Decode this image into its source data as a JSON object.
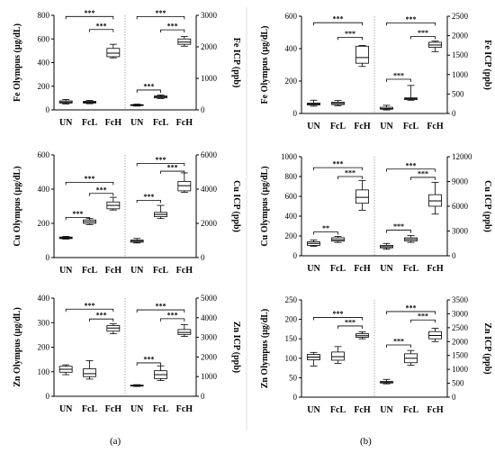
{
  "panel_labels": [
    "(a)",
    "(b)"
  ],
  "chart_data": [
    {
      "type": "box",
      "panel": "(a)",
      "row": 1,
      "categories": [
        "UN",
        "FcL",
        "FcH"
      ],
      "left_axis": {
        "label": "Fe Olympus (µg/dL)",
        "ylim": [
          0,
          800
        ],
        "ticks": [
          0,
          200,
          400,
          600,
          800
        ]
      },
      "right_axis": {
        "label": "Fe ICP (ppb)",
        "ylim": [
          0,
          3000
        ],
        "ticks": [
          0,
          1000,
          2000,
          3000
        ]
      },
      "series": [
        {
          "axis": "left",
          "boxes": [
            {
              "min": 50,
              "q1": 58,
              "median": 66,
              "q3": 76,
              "max": 88
            },
            {
              "min": 52,
              "q1": 58,
              "median": 65,
              "q3": 72,
              "max": 80
            },
            {
              "min": 440,
              "q1": 450,
              "median": 480,
              "q3": 520,
              "max": 555
            }
          ]
        },
        {
          "axis": "right",
          "boxes": [
            {
              "min": 120,
              "q1": 140,
              "median": 150,
              "q3": 165,
              "max": 180
            },
            {
              "min": 360,
              "q1": 380,
              "median": 410,
              "q3": 440,
              "max": 470
            },
            {
              "min": 2020,
              "q1": 2080,
              "median": 2150,
              "q3": 2250,
              "max": 2330
            }
          ]
        }
      ],
      "brackets": [
        {
          "axis": "left",
          "from": 0,
          "to": 2,
          "label": "***",
          "y": 790
        },
        {
          "axis": "left",
          "from": 1,
          "to": 2,
          "label": "***",
          "y": 680
        },
        {
          "axis": "right",
          "from": 0,
          "to": 2,
          "label": "***",
          "y": 2960
        },
        {
          "axis": "right",
          "from": 1,
          "to": 2,
          "label": "***",
          "y": 2540
        },
        {
          "axis": "right",
          "from": 0,
          "to": 1,
          "label": "***",
          "y": 630
        }
      ]
    },
    {
      "type": "box",
      "panel": "(b)",
      "row": 1,
      "categories": [
        "UN",
        "FcL",
        "FcH"
      ],
      "left_axis": {
        "label": "Fe Olympus (µg/dL)",
        "ylim": [
          0,
          600
        ],
        "ticks": [
          0,
          200,
          400,
          600
        ]
      },
      "right_axis": {
        "label": "Fe ICP (ppb)",
        "ylim": [
          0,
          2500
        ],
        "ticks": [
          0,
          500,
          1000,
          1500,
          2000,
          2500
        ]
      },
      "series": [
        {
          "axis": "left",
          "boxes": [
            {
              "min": 45,
              "q1": 52,
              "median": 58,
              "q3": 64,
              "max": 82
            },
            {
              "min": 48,
              "q1": 55,
              "median": 62,
              "q3": 70,
              "max": 80
            },
            {
              "min": 290,
              "q1": 310,
              "median": 345,
              "q3": 415,
              "max": 420
            }
          ]
        },
        {
          "axis": "right",
          "boxes": [
            {
              "min": 90,
              "q1": 110,
              "median": 125,
              "q3": 160,
              "max": 210
            },
            {
              "min": 340,
              "q1": 360,
              "median": 380,
              "q3": 400,
              "max": 720
            },
            {
              "min": 1590,
              "q1": 1700,
              "median": 1760,
              "q3": 1830,
              "max": 1860
            }
          ]
        }
      ],
      "brackets": [
        {
          "axis": "left",
          "from": 0,
          "to": 2,
          "label": "***",
          "y": 560
        },
        {
          "axis": "left",
          "from": 1,
          "to": 2,
          "label": "***",
          "y": 470
        },
        {
          "axis": "right",
          "from": 0,
          "to": 2,
          "label": "***",
          "y": 2330
        },
        {
          "axis": "right",
          "from": 1,
          "to": 2,
          "label": "***",
          "y": 1980
        },
        {
          "axis": "right",
          "from": 0,
          "to": 1,
          "label": "***",
          "y": 880
        }
      ]
    },
    {
      "type": "box",
      "panel": "(a)",
      "row": 2,
      "categories": [
        "UN",
        "FcL",
        "FcH"
      ],
      "left_axis": {
        "label": "Cu Olympus (µg/dL)",
        "ylim": [
          0,
          600
        ],
        "ticks": [
          0,
          200,
          400,
          600
        ]
      },
      "right_axis": {
        "label": "Cu ICP (ppb)",
        "ylim": [
          0,
          6000
        ],
        "ticks": [
          0,
          2000,
          4000,
          6000
        ]
      },
      "series": [
        {
          "axis": "left",
          "boxes": [
            {
              "min": 108,
              "q1": 111,
              "median": 115,
              "q3": 120,
              "max": 124
            },
            {
              "min": 193,
              "q1": 200,
              "median": 210,
              "q3": 220,
              "max": 228
            },
            {
              "min": 278,
              "q1": 285,
              "median": 305,
              "q3": 325,
              "max": 352
            }
          ]
        },
        {
          "axis": "right",
          "boxes": [
            {
              "min": 850,
              "q1": 900,
              "median": 960,
              "q3": 1020,
              "max": 1120
            },
            {
              "min": 2280,
              "q1": 2390,
              "median": 2520,
              "q3": 2640,
              "max": 3050
            },
            {
              "min": 3820,
              "q1": 3900,
              "median": 4200,
              "q3": 4450,
              "max": 4950
            }
          ]
        }
      ],
      "brackets": [
        {
          "axis": "left",
          "from": 0,
          "to": 2,
          "label": "***",
          "y": 440
        },
        {
          "axis": "left",
          "from": 1,
          "to": 2,
          "label": "***",
          "y": 375
        },
        {
          "axis": "left",
          "from": 0,
          "to": 1,
          "label": "***",
          "y": 235
        },
        {
          "axis": "right",
          "from": 0,
          "to": 2,
          "label": "***",
          "y": 5500
        },
        {
          "axis": "right",
          "from": 1,
          "to": 2,
          "label": "***",
          "y": 5050
        },
        {
          "axis": "right",
          "from": 0,
          "to": 1,
          "label": "***",
          "y": 3350
        }
      ]
    },
    {
      "type": "box",
      "panel": "(b)",
      "row": 2,
      "categories": [
        "UN",
        "FcL",
        "FcH"
      ],
      "left_axis": {
        "label": "Cu Olympus (µg/dL)",
        "ylim": [
          0,
          1000
        ],
        "ticks": [
          0,
          200,
          400,
          600,
          800,
          1000
        ]
      },
      "right_axis": {
        "label": "Cu ICP (ppb)",
        "ylim": [
          0,
          12000
        ],
        "ticks": [
          0,
          3000,
          6000,
          9000,
          12000
        ]
      },
      "series": [
        {
          "axis": "left",
          "boxes": [
            {
              "min": 95,
              "q1": 105,
              "median": 125,
              "q3": 140,
              "max": 160
            },
            {
              "min": 135,
              "q1": 148,
              "median": 162,
              "q3": 182,
              "max": 195
            },
            {
              "min": 460,
              "q1": 530,
              "median": 590,
              "q3": 665,
              "max": 760
            }
          ]
        },
        {
          "axis": "right",
          "boxes": [
            {
              "min": 780,
              "q1": 960,
              "median": 1100,
              "q3": 1260,
              "max": 1500
            },
            {
              "min": 1620,
              "q1": 1800,
              "median": 1990,
              "q3": 2180,
              "max": 2450
            },
            {
              "min": 5050,
              "q1": 6000,
              "median": 6650,
              "q3": 7400,
              "max": 8900
            }
          ]
        }
      ],
      "brackets": [
        {
          "axis": "left",
          "from": 0,
          "to": 2,
          "label": "***",
          "y": 890
        },
        {
          "axis": "left",
          "from": 1,
          "to": 2,
          "label": "***",
          "y": 800
        },
        {
          "axis": "left",
          "from": 0,
          "to": 1,
          "label": "**",
          "y": 240
        },
        {
          "axis": "right",
          "from": 0,
          "to": 2,
          "label": "***",
          "y": 10500
        },
        {
          "axis": "right",
          "from": 1,
          "to": 2,
          "label": "***",
          "y": 9500
        },
        {
          "axis": "right",
          "from": 0,
          "to": 1,
          "label": "***",
          "y": 3100
        }
      ]
    },
    {
      "type": "box",
      "panel": "(a)",
      "row": 3,
      "categories": [
        "UN",
        "FcL",
        "FcH"
      ],
      "left_axis": {
        "label": "Zn Olympus (µg/dL)",
        "ylim": [
          0,
          400
        ],
        "ticks": [
          0,
          100,
          200,
          300,
          400
        ]
      },
      "right_axis": {
        "label": "Zn ICP (ppb)",
        "ylim": [
          0,
          5000
        ],
        "ticks": [
          0,
          1000,
          2000,
          3000,
          4000,
          5000
        ]
      },
      "series": [
        {
          "axis": "left",
          "boxes": [
            {
              "min": 88,
              "q1": 98,
              "median": 110,
              "q3": 122,
              "max": 128
            },
            {
              "min": 70,
              "q1": 80,
              "median": 92,
              "q3": 112,
              "max": 145
            },
            {
              "min": 255,
              "q1": 265,
              "median": 278,
              "q3": 288,
              "max": 295
            }
          ]
        },
        {
          "axis": "right",
          "boxes": [
            {
              "min": 500,
              "q1": 530,
              "median": 545,
              "q3": 565,
              "max": 590
            },
            {
              "min": 800,
              "q1": 900,
              "median": 1100,
              "q3": 1300,
              "max": 1550
            },
            {
              "min": 3050,
              "q1": 3150,
              "median": 3250,
              "q3": 3400,
              "max": 3650
            }
          ]
        }
      ],
      "brackets": [
        {
          "axis": "left",
          "from": 0,
          "to": 2,
          "label": "***",
          "y": 355
        },
        {
          "axis": "left",
          "from": 1,
          "to": 2,
          "label": "***",
          "y": 315
        },
        {
          "axis": "right",
          "from": 0,
          "to": 2,
          "label": "***",
          "y": 4400
        },
        {
          "axis": "right",
          "from": 1,
          "to": 2,
          "label": "***",
          "y": 3950
        },
        {
          "axis": "right",
          "from": 0,
          "to": 1,
          "label": "***",
          "y": 1700
        }
      ]
    },
    {
      "type": "box",
      "panel": "(b)",
      "row": 3,
      "categories": [
        "UN",
        "FcL",
        "FcH"
      ],
      "left_axis": {
        "label": "Zn Olympus (µg/dL)",
        "ylim": [
          0,
          250
        ],
        "ticks": [
          0,
          50,
          100,
          150,
          200,
          250
        ]
      },
      "right_axis": {
        "label": "Zn ICP (ppb)",
        "ylim": [
          0,
          3500
        ],
        "ticks": [
          0,
          500,
          1000,
          1500,
          2000,
          2500,
          3000,
          3500
        ]
      },
      "series": [
        {
          "axis": "left",
          "boxes": [
            {
              "min": 80,
              "q1": 96,
              "median": 103,
              "q3": 110,
              "max": 115
            },
            {
              "min": 87,
              "q1": 95,
              "median": 104,
              "q3": 116,
              "max": 130
            },
            {
              "min": 150,
              "q1": 154,
              "median": 158,
              "q3": 163,
              "max": 168
            }
          ]
        },
        {
          "axis": "right",
          "boxes": [
            {
              "min": 480,
              "q1": 510,
              "median": 530,
              "q3": 565,
              "max": 640
            },
            {
              "min": 1150,
              "q1": 1240,
              "median": 1400,
              "q3": 1560,
              "max": 1680
            },
            {
              "min": 2000,
              "q1": 2100,
              "median": 2220,
              "q3": 2360,
              "max": 2480
            }
          ]
        }
      ],
      "brackets": [
        {
          "axis": "left",
          "from": 0,
          "to": 2,
          "label": "***",
          "y": 205
        },
        {
          "axis": "left",
          "from": 1,
          "to": 2,
          "label": "***",
          "y": 183
        },
        {
          "axis": "right",
          "from": 0,
          "to": 2,
          "label": "***",
          "y": 3080
        },
        {
          "axis": "right",
          "from": 1,
          "to": 2,
          "label": "***",
          "y": 2780
        },
        {
          "axis": "right",
          "from": 0,
          "to": 1,
          "label": "***",
          "y": 1880
        }
      ]
    }
  ]
}
